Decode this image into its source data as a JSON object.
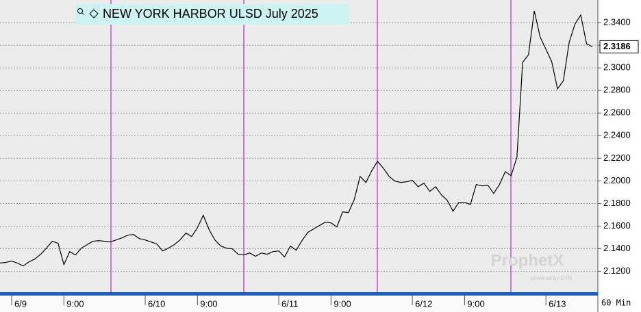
{
  "chart_data": {
    "type": "line",
    "title": "NEW YORK HARBOR ULSD July 2025",
    "interval": "60 Min",
    "watermark": "ProphetX",
    "watermark_sub": "powered by DTN",
    "color": "#000000",
    "grid": true,
    "last_value_marker": true,
    "categories": [
      null,
      null,
      "6/9",
      null,
      null,
      null,
      null,
      null,
      null,
      null,
      null,
      "9:00",
      null,
      null,
      null,
      null,
      null,
      null,
      null,
      null,
      null,
      null,
      null,
      null,
      null,
      "6/10",
      null,
      null,
      null,
      null,
      null,
      null,
      null,
      null,
      "9:00",
      null,
      null,
      null,
      null,
      null,
      null,
      null,
      null,
      null,
      null,
      null,
      null,
      null,
      "6/11",
      null,
      null,
      null,
      null,
      null,
      null,
      null,
      null,
      "9:00",
      null,
      null,
      null,
      null,
      null,
      null,
      null,
      null,
      null,
      null,
      null,
      null,
      null,
      "6/12",
      null,
      null,
      null,
      null,
      null,
      null,
      null,
      null,
      "9:00",
      null,
      null,
      null,
      null,
      null,
      null,
      null,
      null,
      null,
      null,
      null,
      null,
      null,
      "6/13",
      null,
      null,
      null,
      null,
      null,
      null,
      null,
      null
    ],
    "values": [
      2.1273,
      2.1279,
      2.1291,
      2.1273,
      2.1248,
      2.1285,
      2.1309,
      2.1351,
      2.1405,
      2.1466,
      2.1448,
      2.126,
      2.1375,
      2.1345,
      2.1405,
      2.1436,
      2.1466,
      2.1472,
      2.1466,
      2.146,
      2.1478,
      2.1496,
      2.152,
      2.1526,
      2.149,
      2.1478,
      2.146,
      2.1442,
      2.1381,
      2.1405,
      2.1436,
      2.1478,
      2.1538,
      2.1508,
      2.1587,
      2.1696,
      2.1569,
      2.1478,
      2.1424,
      2.1405,
      2.1399,
      2.1351,
      2.1345,
      2.1363,
      2.1333,
      2.1363,
      2.1351,
      2.1375,
      2.1381,
      2.1327,
      2.1424,
      2.1387,
      2.1472,
      2.1545,
      2.1575,
      2.1605,
      2.1635,
      2.1629,
      2.1593,
      2.1726,
      2.172,
      2.1835,
      2.204,
      2.1986,
      2.2088,
      2.2173,
      2.2113,
      2.204,
      2.1998,
      2.1986,
      2.1992,
      2.2004,
      2.1949,
      2.198,
      2.1907,
      2.1949,
      2.1877,
      2.1829,
      2.1732,
      2.181,
      2.181,
      2.1792,
      2.1968,
      2.1956,
      2.1962,
      2.1889,
      2.1968,
      2.2082,
      2.2046,
      2.2209,
      2.3049,
      2.3116,
      2.3503,
      2.3273,
      2.3164,
      2.3055,
      2.2814,
      2.2886,
      2.3225,
      2.3388,
      2.3467,
      2.3213,
      2.3186
    ],
    "ylim": [
      2.101,
      2.36
    ],
    "yticks": [
      {
        "value": 2.12,
        "label": "2.1200"
      },
      {
        "value": 2.14,
        "label": "2.1400"
      },
      {
        "value": 2.16,
        "label": "2.1600"
      },
      {
        "value": 2.18,
        "label": "2.1800"
      },
      {
        "value": 2.2,
        "label": "2.2000"
      },
      {
        "value": 2.22,
        "label": "2.2200"
      },
      {
        "value": 2.24,
        "label": "2.2400"
      },
      {
        "value": 2.26,
        "label": "2.2600"
      },
      {
        "value": 2.28,
        "label": "2.2800"
      },
      {
        "value": 2.3,
        "label": "2.3000"
      },
      {
        "value": 2.32,
        "label": "2.3200"
      },
      {
        "value": 2.34,
        "label": "2.3400"
      }
    ]
  }
}
